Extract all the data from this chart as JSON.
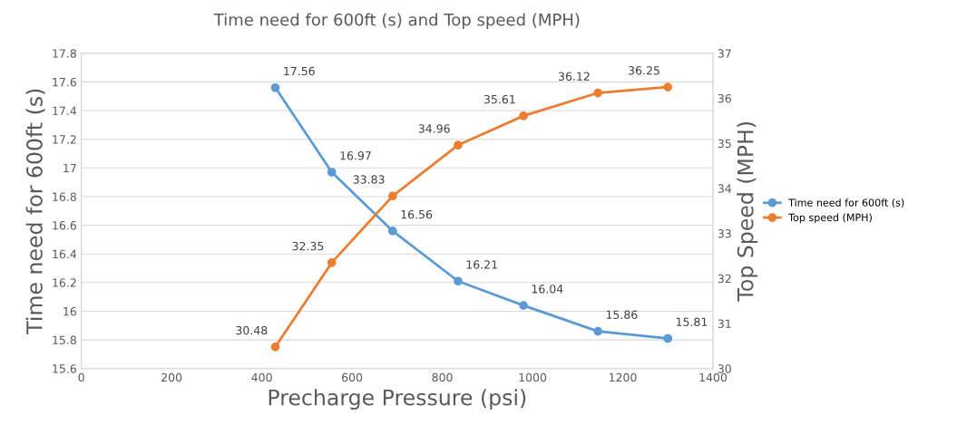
{
  "chart_data": {
    "type": "line",
    "title": "Time need for 600ft (s) and Top speed (MPH)",
    "xlabel": "Precharge Pressure (psi)",
    "ylabel": "Time need for 600ft (s)",
    "y2label": "Top Speed (MPH)",
    "x": [
      430,
      555,
      690,
      835,
      980,
      1145,
      1300
    ],
    "series": [
      {
        "name": "Time need for 600ft (s)",
        "color": "#5b9bd5",
        "values": [
          17.56,
          16.97,
          16.56,
          16.21,
          16.04,
          15.86,
          15.81
        ]
      },
      {
        "name": "Top speed (MPH)",
        "color": "#ed7d31",
        "axis": "y2",
        "values": [
          30.48,
          32.35,
          33.83,
          34.96,
          35.61,
          36.12,
          36.25
        ]
      }
    ],
    "xlim": [
      0,
      1400
    ],
    "xticks": [
      0,
      200,
      400,
      600,
      800,
      1000,
      1200,
      1400
    ],
    "ylim": [
      15.6,
      17.8
    ],
    "yticks": [
      15.6,
      15.8,
      16,
      16.2,
      16.4,
      16.6,
      16.8,
      17,
      17.2,
      17.4,
      17.6,
      17.8
    ],
    "y2lim": [
      30,
      37
    ],
    "y2ticks": [
      30,
      31,
      32,
      33,
      34,
      35,
      36,
      37
    ],
    "grid": "y",
    "legend": "right",
    "marker": "circle",
    "line_style": "solid",
    "data_labels": true
  }
}
